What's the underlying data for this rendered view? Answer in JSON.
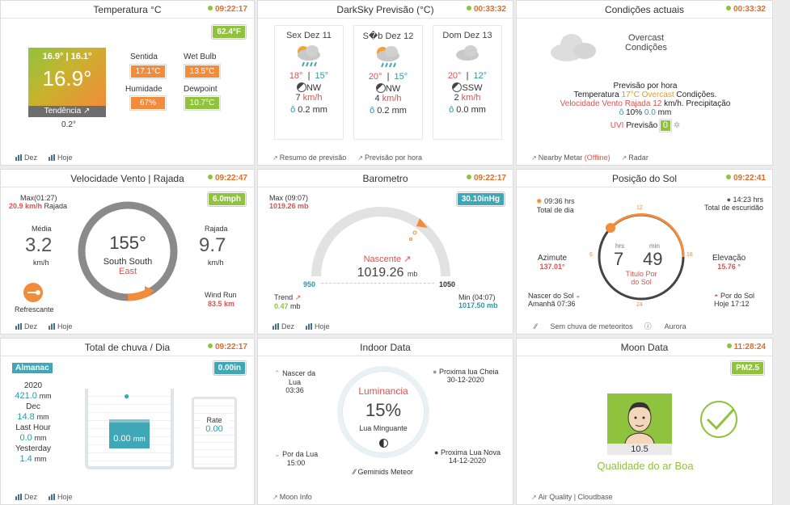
{
  "temp": {
    "title": "Temperatura °C",
    "time": "09:22:17",
    "badge": "62.4°F",
    "hilo": "16.9° | 16.1°",
    "value": "16.9°",
    "trend_label": "Tendência",
    "trend": "0.2°",
    "feels_label": "Sentida",
    "feels": "17.1°C",
    "wet_label": "Wet Bulb",
    "wet": "13.5°C",
    "hum_label": "Humidade",
    "hum": "67%",
    "dew_label": "Dewpoint",
    "dew": "10.7°C",
    "f1": "Dez",
    "f2": "Hoje"
  },
  "forecast": {
    "title": "DarkSky Previsão (°C)",
    "time": "00:33:32",
    "days": [
      {
        "name": "Sex Dez 11",
        "hi": "18°",
        "lo": "15°",
        "dir": "NW",
        "wind": "7",
        "unit": "km/h",
        "rain": "0.2 mm"
      },
      {
        "name": "S�b Dez 12",
        "hi": "20°",
        "lo": "15°",
        "dir": "NW",
        "wind": "4",
        "unit": "km/h",
        "rain": "0.2 mm"
      },
      {
        "name": "Dom Dez 13",
        "hi": "20°",
        "lo": "12°",
        "dir": "SSW",
        "wind": "2",
        "unit": "km/h",
        "rain": "0.0 mm"
      }
    ],
    "f1": "Resumo de previsão",
    "f2": "Previsão por hora"
  },
  "cond": {
    "title": "Condições actuais",
    "time": "00:33:32",
    "l1": "Overcast",
    "l2": "Condições",
    "hourly": "Previsão por hora",
    "t_pre": "Temperatura",
    "t_val": "17°C",
    "t_cond": "Overcast",
    "t_post": "Condições.",
    "w_pre": "Velocidade Vento Rajada",
    "w_val": "12",
    "w_post": "km/h. Precipitação",
    "p_val": "10%",
    "p_mm": "0.0",
    "p_unit": "mm",
    "uvi": "UVI",
    "uvi_pre": "Previsão",
    "uvi_val": "0",
    "f1": "Nearby Metar",
    "f1b": "(Offline)",
    "f2": "Radar"
  },
  "wind": {
    "title": "Velocidade Vento | Rajada",
    "time": "09:22:47",
    "badge": "6.0mph",
    "max_label": "Max(01:27)",
    "max": "20.9 km/h",
    "max_post": "Rajada",
    "avg_label": "Média",
    "avg": "3.2",
    "avg_unit": "km/h",
    "gust_label": "Rajada",
    "gust": "9.7",
    "gust_unit": "km/h",
    "dir": "155°",
    "dir_text": "South South",
    "dir_text2": "East",
    "refresh": "Refrescante",
    "run_label": "Wind Run",
    "run": "83.5 km",
    "f1": "Dez",
    "f2": "Hoje"
  },
  "baro": {
    "title": "Barometro",
    "time": "09:22:17",
    "badge": "30.10inHg",
    "max_label": "Max (09:07)",
    "max": "1019.26 mb",
    "status": "Nascente",
    "value": "1019.26",
    "unit": "mb",
    "lo": "950",
    "hi": "1050",
    "trend_label": "Trend",
    "trend": "0.47",
    "trend_unit": "mb",
    "min_label": "Min (04:07)",
    "min": "1017.50 mb",
    "f1": "Dez",
    "f2": "Hoje"
  },
  "sun": {
    "title": "Posição do Sol",
    "time": "09:22:41",
    "daylight": "09:36 hrs",
    "daylight_label": "Total de dia",
    "dark": "14:23 hrs",
    "dark_label": "Total de escuridão",
    "az_label": "Azimute",
    "az": "137.01°",
    "el_label": "Elevação",
    "el": "15.76 °",
    "hrs_label": "hrs",
    "min_label": "min",
    "hrs": "7",
    "min": "49",
    "sub": "Título Por",
    "sub2": "do Sol",
    "rise_label": "Nascer do Sol",
    "rise": "Amanhã 07:36",
    "set_label": "Por do Sol",
    "set": "Hoje 17:12",
    "t12": "12",
    "t6": "6",
    "t18": "18",
    "t24": "24",
    "f1": "Sem chuva de meteoritos",
    "f2": "Aurora"
  },
  "rain": {
    "title": "Total de chuva / Dia",
    "time": "09:22:17",
    "badge": "0.00in",
    "almanac": "Almanac",
    "year": "2020",
    "year_val": "421.0",
    "month": "Dec",
    "month_val": "14.8",
    "hour": "Last Hour",
    "hour_val": "0.0",
    "yest": "Yesterday",
    "yest_val": "1.4",
    "mm": "mm",
    "gauge": "0.00",
    "gauge_unit": "mm",
    "rate_label": "Rate",
    "rate": "0.00",
    "f1": "Dez",
    "f2": "Hoje"
  },
  "indoor": {
    "title": "Indoor Data",
    "nasc": "Nascer da",
    "nasc2": "Lua",
    "nasc_t": "03:36",
    "por": "Por da Lua",
    "por_t": "15:00",
    "full": "Proxima lua Cheia",
    "full_d": "30-12-2020",
    "new": "Proxima Lua Nova",
    "new_d": "14-12-2020",
    "lum": "Luminancia",
    "pct": "15%",
    "phase": "Lua Minguante",
    "meteor": "Geminids Meteor",
    "f1": "Moon Info"
  },
  "moon": {
    "title": "Moon Data",
    "time": "11:28:24",
    "badge": "PM2.5",
    "aqi": "10.5",
    "quality": "Qualidade do ar Boa",
    "f1": "Air Quality | Cloudbase"
  }
}
